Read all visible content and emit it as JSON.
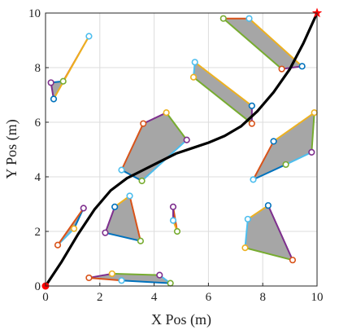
{
  "chart_data": {
    "type": "scatter",
    "title": "",
    "xlabel": "X Pos (m)",
    "ylabel": "Y Pos (m)",
    "xlim": [
      0,
      10
    ],
    "ylim": [
      0,
      10
    ],
    "xticks": [
      0,
      2,
      4,
      6,
      8,
      10
    ],
    "yticks": [
      0,
      2,
      4,
      6,
      8,
      10
    ],
    "grid": true,
    "start": {
      "x": 0,
      "y": 0,
      "marker": "circle",
      "color": "#ff0000"
    },
    "goal": {
      "x": 10,
      "y": 10,
      "marker": "star",
      "color": "#ff0000"
    },
    "path": {
      "color": "#000000",
      "points": [
        [
          0,
          0
        ],
        [
          0.6,
          0.9
        ],
        [
          1.2,
          1.9
        ],
        [
          1.8,
          2.8
        ],
        [
          2.4,
          3.5
        ],
        [
          3.0,
          3.95
        ],
        [
          3.6,
          4.25
        ],
        [
          4.2,
          4.55
        ],
        [
          4.8,
          4.85
        ],
        [
          5.4,
          5.05
        ],
        [
          6.0,
          5.25
        ],
        [
          6.6,
          5.5
        ],
        [
          7.2,
          5.85
        ],
        [
          7.8,
          6.4
        ],
        [
          8.4,
          7.1
        ],
        [
          9.0,
          7.95
        ],
        [
          9.5,
          8.9
        ],
        [
          10,
          10
        ]
      ]
    },
    "obstacle_fill": "#a6a6a6",
    "edge_colors": [
      "#0072bd",
      "#d95319",
      "#edb120",
      "#7e2f8e",
      "#77ac30",
      "#4dbeee"
    ],
    "obstacles": [
      {
        "vertices": [
          [
            0.2,
            7.45
          ],
          [
            0.65,
            7.5
          ],
          [
            1.6,
            9.15
          ],
          [
            0.3,
            6.85
          ]
        ]
      },
      {
        "vertices": [
          [
            6.55,
            9.8
          ],
          [
            7.5,
            9.8
          ],
          [
            9.45,
            8.05
          ],
          [
            8.7,
            7.95
          ]
        ]
      },
      {
        "vertices": [
          [
            5.5,
            8.2
          ],
          [
            7.6,
            6.6
          ],
          [
            7.6,
            5.95
          ],
          [
            5.45,
            7.65
          ]
        ]
      },
      {
        "vertices": [
          [
            3.6,
            5.95
          ],
          [
            4.45,
            6.35
          ],
          [
            5.2,
            5.35
          ],
          [
            3.55,
            3.85
          ],
          [
            2.8,
            4.25
          ]
        ]
      },
      {
        "vertices": [
          [
            9.9,
            6.35
          ],
          [
            9.8,
            4.9
          ],
          [
            8.85,
            4.45
          ],
          [
            7.65,
            3.9
          ],
          [
            8.4,
            5.3
          ]
        ]
      },
      {
        "vertices": [
          [
            0.45,
            1.5
          ],
          [
            1.05,
            2.1
          ],
          [
            1.4,
            2.85
          ]
        ]
      },
      {
        "vertices": [
          [
            2.2,
            1.95
          ],
          [
            3.5,
            1.65
          ],
          [
            3.1,
            3.3
          ],
          [
            2.55,
            2.9
          ]
        ]
      },
      {
        "vertices": [
          [
            4.7,
            2.9
          ],
          [
            4.85,
            2.0
          ],
          [
            4.7,
            2.4
          ]
        ]
      },
      {
        "vertices": [
          [
            7.45,
            2.45
          ],
          [
            8.2,
            2.95
          ],
          [
            9.1,
            0.95
          ],
          [
            7.35,
            1.4
          ]
        ]
      },
      {
        "vertices": [
          [
            1.6,
            0.3
          ],
          [
            2.45,
            0.45
          ],
          [
            4.2,
            0.4
          ],
          [
            4.6,
            0.1
          ],
          [
            2.8,
            0.2
          ]
        ]
      }
    ]
  }
}
